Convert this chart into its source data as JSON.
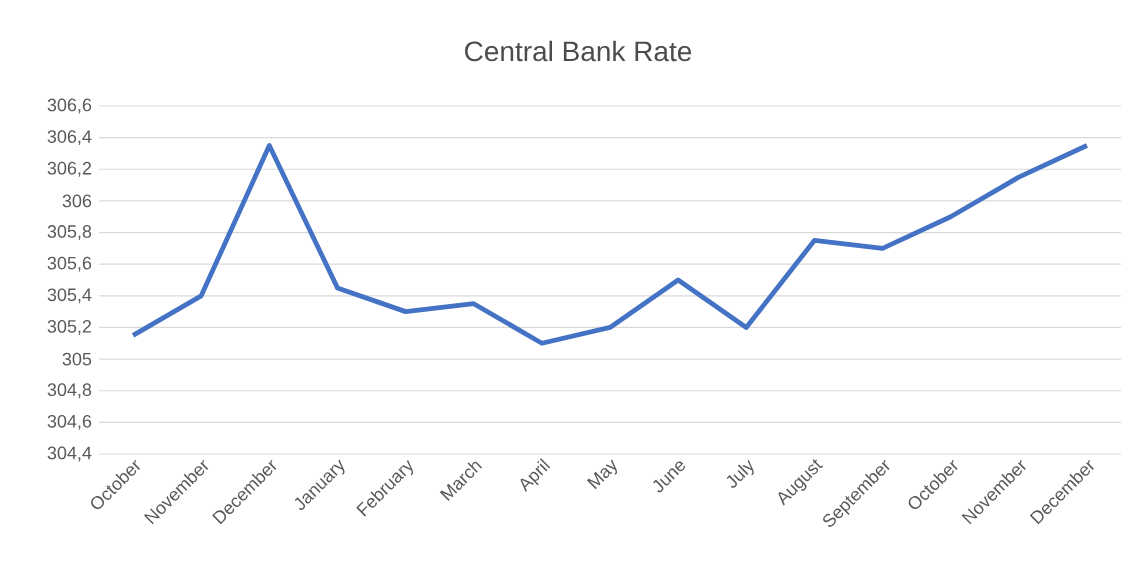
{
  "chart_data": {
    "type": "line",
    "title": "Central Bank Rate",
    "categories": [
      "October",
      "November",
      "December",
      "January",
      "February",
      "March",
      "April",
      "May",
      "June",
      "July",
      "August",
      "September",
      "October",
      "November",
      "December"
    ],
    "series": [
      {
        "color": "#4472c4",
        "values": [
          305.15,
          305.4,
          306.35,
          305.45,
          305.3,
          305.35,
          305.1,
          305.2,
          305.5,
          305.2,
          305.75,
          305.7,
          305.9,
          306.15,
          306.35
        ]
      }
    ],
    "ylim": [
      304.4,
      306.6
    ],
    "yticks": [
      {
        "value": 304.4,
        "label": "304,4"
      },
      {
        "value": 304.6,
        "label": "304,6"
      },
      {
        "value": 304.8,
        "label": "304,8"
      },
      305,
      {
        "value": 305.2,
        "label": "305,2"
      },
      {
        "value": 305.4,
        "label": "305,4"
      },
      {
        "value": 305.6,
        "label": "305,6"
      },
      {
        "value": 305.8,
        "label": "305,8"
      },
      306,
      {
        "value": 306.2,
        "label": "306,2"
      },
      {
        "value": 306.4,
        "label": "306,4"
      },
      {
        "value": 306.6,
        "label": "306,6"
      }
    ],
    "grid": "y",
    "marker": "none",
    "line_style": "solid"
  }
}
